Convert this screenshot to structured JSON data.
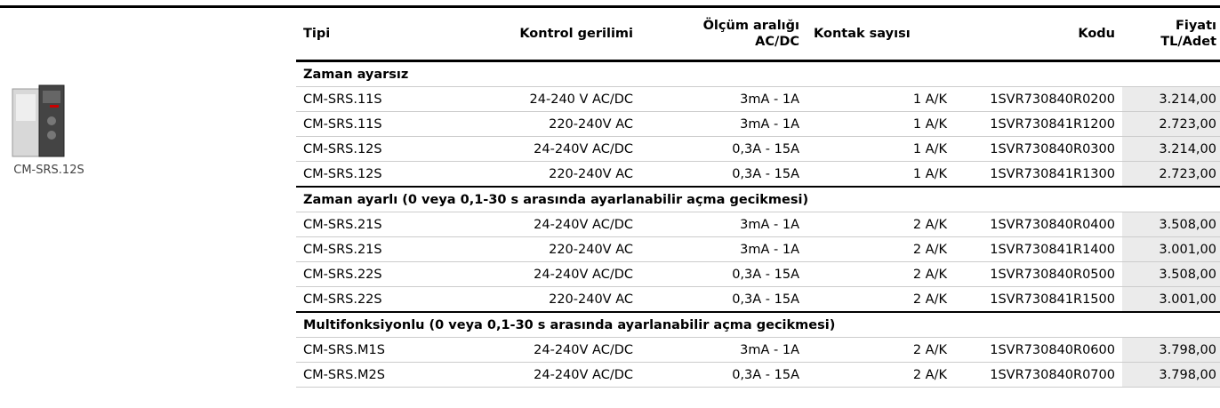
{
  "product": {
    "caption": "CM-SRS.12S"
  },
  "table": {
    "columns": [
      "Tipi",
      "Kontrol gerilimi",
      "Ölçüm aralığı\nAC/DC",
      "Kontak sayısı",
      "Kodu",
      "Fiyatı\nTL/Adet"
    ],
    "groups": [
      {
        "title": "Zaman ayarsız",
        "rows": [
          [
            "CM-SRS.11S",
            "24-240 V AC/DC",
            "3mA - 1A",
            "1 A/K",
            "1SVR730840R0200",
            "3.214,00"
          ],
          [
            "CM-SRS.11S",
            "220-240V AC",
            "3mA - 1A",
            "1 A/K",
            "1SVR730841R1200",
            "2.723,00"
          ],
          [
            "CM-SRS.12S",
            "24-240V AC/DC",
            "0,3A - 15A",
            "1 A/K",
            "1SVR730840R0300",
            "3.214,00"
          ],
          [
            "CM-SRS.12S",
            "220-240V AC",
            "0,3A - 15A",
            "1 A/K",
            "1SVR730841R1300",
            "2.723,00"
          ]
        ]
      },
      {
        "title": "Zaman ayarlı (0 veya 0,1-30 s arasında ayarlanabilir açma gecikmesi)",
        "rows": [
          [
            "CM-SRS.21S",
            "24-240V AC/DC",
            "3mA - 1A",
            "2 A/K",
            "1SVR730840R0400",
            "3.508,00"
          ],
          [
            "CM-SRS.21S",
            "220-240V AC",
            "3mA - 1A",
            "2 A/K",
            "1SVR730841R1400",
            "3.001,00"
          ],
          [
            "CM-SRS.22S",
            "24-240V AC/DC",
            "0,3A - 15A",
            "2 A/K",
            "1SVR730840R0500",
            "3.508,00"
          ],
          [
            "CM-SRS.22S",
            "220-240V AC",
            "0,3A - 15A",
            "2 A/K",
            "1SVR730841R1500",
            "3.001,00"
          ]
        ]
      },
      {
        "title": "Multifonksiyonlu (0 veya 0,1-30 s arasında ayarlanabilir açma gecikmesi)",
        "rows": [
          [
            "CM-SRS.M1S",
            "24-240V AC/DC",
            "3mA - 1A",
            "2 A/K",
            "1SVR730840R0600",
            "3.798,00"
          ],
          [
            "CM-SRS.M2S",
            "24-240V AC/DC",
            "0,3A - 15A",
            "2 A/K",
            "1SVR730840R0700",
            "3.798,00"
          ]
        ]
      }
    ]
  }
}
